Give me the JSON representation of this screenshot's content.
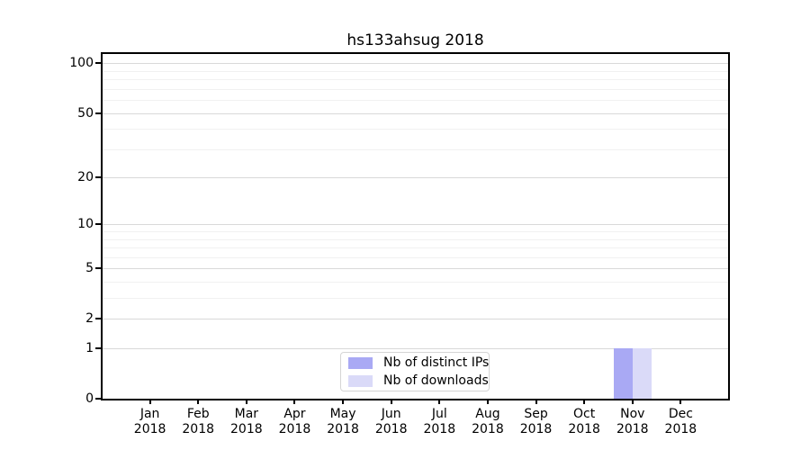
{
  "chart_data": {
    "type": "bar",
    "title": "hs133ahsug 2018",
    "categories": [
      "Jan",
      "Feb",
      "Mar",
      "Apr",
      "May",
      "Jun",
      "Jul",
      "Aug",
      "Sep",
      "Oct",
      "Nov",
      "Dec"
    ],
    "x_year": "2018",
    "series": [
      {
        "name": "Nb of distinct IPs",
        "color": "#a9a9f4",
        "values": [
          0,
          0,
          0,
          0,
          0,
          0,
          0,
          0,
          0,
          0,
          1,
          0
        ]
      },
      {
        "name": "Nb of downloads",
        "color": "#dadaf8",
        "values": [
          0,
          0,
          0,
          0,
          0,
          0,
          0,
          0,
          0,
          0,
          1,
          0
        ]
      }
    ],
    "y_ticks": [
      0,
      1,
      2,
      5,
      10,
      20,
      50,
      100
    ],
    "y_minor_ticks": [
      3,
      4,
      6,
      7,
      8,
      9,
      30,
      40,
      60,
      70,
      80,
      90
    ],
    "scale": "log1p",
    "ylim": [
      0,
      114
    ],
    "xlabel": "",
    "ylabel": "",
    "grid": true,
    "legend_position": "lower center"
  }
}
